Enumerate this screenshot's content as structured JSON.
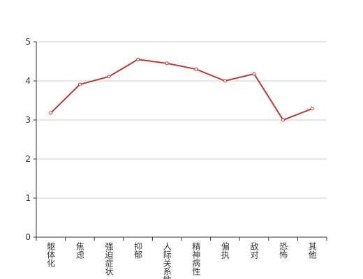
{
  "chart_data": {
    "type": "line",
    "categories": [
      "躯体化",
      "焦虑",
      "强迫症状",
      "抑郁",
      "人际关系敏感",
      "精神病性",
      "偏执",
      "敌对",
      "恐怖",
      "其他"
    ],
    "series": [
      {
        "color": "#c23531",
        "values": [
          3.18,
          3.91,
          4.11,
          4.55,
          4.45,
          4.3,
          4.0,
          4.18,
          3.0,
          3.29
        ]
      }
    ],
    "ylim": [
      0,
      5
    ],
    "yticks": [
      0,
      1,
      2,
      3,
      4,
      5
    ],
    "grid": true
  }
}
